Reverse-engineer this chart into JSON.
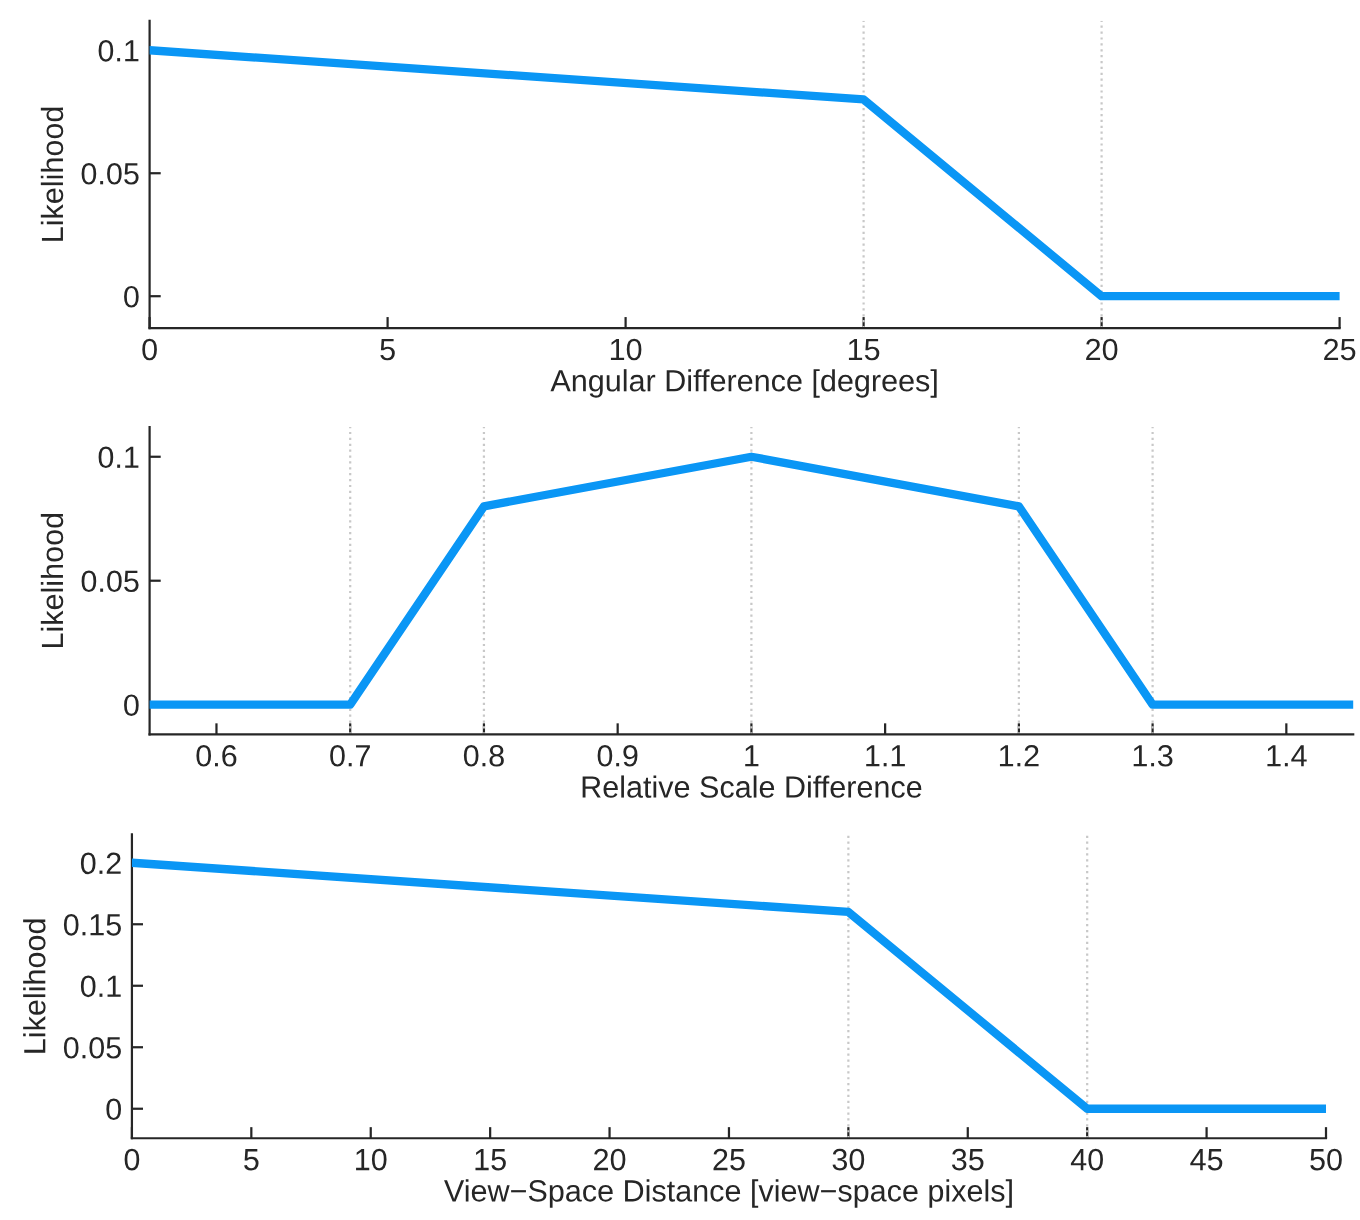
{
  "chart_data": [
    {
      "type": "line",
      "xlabel": "Angular Difference [degrees]",
      "ylabel": "Likelihood",
      "x": [
        0,
        15,
        20,
        25
      ],
      "series": [
        {
          "color": "#0a96f5",
          "values": [
            0.1,
            0.08,
            0,
            0
          ]
        }
      ],
      "xlim": [
        0,
        25
      ],
      "xticks": [
        0,
        5,
        10,
        15,
        20,
        25
      ],
      "ylim": [
        -0.013,
        0.112
      ],
      "yticks": [
        0,
        0.05,
        0.1
      ],
      "ref_lines": [
        {
          "axis": "x",
          "value": 15,
          "color": "#c8c8c8",
          "line_style": "dotted"
        },
        {
          "axis": "x",
          "value": 20,
          "color": "#c8c8c8",
          "line_style": "dotted"
        }
      ],
      "grid": false,
      "legend": false,
      "marker": "none",
      "line_style": "solid"
    },
    {
      "type": "line",
      "xlabel": "Relative Scale Difference",
      "ylabel": "Likelihood",
      "x": [
        0.55,
        0.7,
        0.8,
        1.0,
        1.2,
        1.3,
        1.45
      ],
      "series": [
        {
          "color": "#0a96f5",
          "values": [
            0,
            0,
            0.08,
            0.1,
            0.08,
            0,
            0
          ]
        }
      ],
      "xlim": [
        0.55,
        1.45
      ],
      "xticks": [
        0.6,
        0.7,
        0.8,
        0.9,
        1,
        1.1,
        1.2,
        1.3,
        1.4
      ],
      "ylim": [
        -0.012,
        0.112
      ],
      "yticks": [
        0,
        0.05,
        0.1
      ],
      "ref_lines": [
        {
          "axis": "x",
          "value": 0.7,
          "color": "#c8c8c8",
          "line_style": "dotted"
        },
        {
          "axis": "x",
          "value": 0.8,
          "color": "#c8c8c8",
          "line_style": "dotted"
        },
        {
          "axis": "x",
          "value": 1.0,
          "color": "#c8c8c8",
          "line_style": "dotted"
        },
        {
          "axis": "x",
          "value": 1.2,
          "color": "#c8c8c8",
          "line_style": "dotted"
        },
        {
          "axis": "x",
          "value": 1.3,
          "color": "#c8c8c8",
          "line_style": "dotted"
        }
      ],
      "grid": false,
      "legend": false,
      "marker": "none",
      "line_style": "solid"
    },
    {
      "type": "line",
      "xlabel": "View−Space Distance [view−space pixels]",
      "ylabel": "Likelihood",
      "x": [
        0,
        30,
        40,
        50
      ],
      "series": [
        {
          "color": "#0a96f5",
          "values": [
            0.2,
            0.16,
            0,
            0
          ]
        }
      ],
      "xlim": [
        0,
        50
      ],
      "xticks": [
        0,
        5,
        10,
        15,
        20,
        25,
        30,
        35,
        40,
        45,
        50
      ],
      "ylim": [
        -0.024,
        0.223
      ],
      "yticks": [
        0,
        0.05,
        0.1,
        0.15,
        0.2
      ],
      "ref_lines": [
        {
          "axis": "x",
          "value": 30,
          "color": "#c8c8c8",
          "line_style": "dotted"
        },
        {
          "axis": "x",
          "value": 40,
          "color": "#c8c8c8",
          "line_style": "dotted"
        }
      ],
      "grid": false,
      "legend": false,
      "marker": "none",
      "line_style": "solid"
    }
  ]
}
